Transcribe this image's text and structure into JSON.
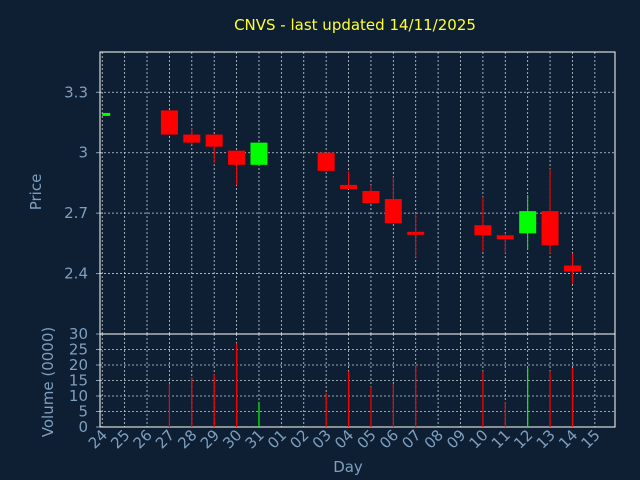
{
  "chart_data": [
    {
      "type": "candlestick",
      "title": "CNVS - last updated 14/11/2025",
      "ylabel": "Price",
      "ylim": [
        2.1,
        3.5
      ],
      "yticks": [
        2.4,
        2.7,
        3,
        3.3
      ],
      "ytick_labels": [
        "2.4",
        "2.7",
        "3",
        "3.3"
      ],
      "up_color": "#00ff00",
      "down_color": "#ff0000",
      "grid": true,
      "candles": [
        {
          "day": "24",
          "open": 3.19,
          "high": 3.19,
          "low": 3.19,
          "close": 3.19
        },
        {
          "day": "27",
          "open": 3.21,
          "high": 3.21,
          "low": 3.09,
          "close": 3.09
        },
        {
          "day": "28",
          "open": 3.09,
          "high": 3.12,
          "low": 3.04,
          "close": 3.05
        },
        {
          "day": "29",
          "open": 3.09,
          "high": 3.09,
          "low": 2.95,
          "close": 3.03
        },
        {
          "day": "30",
          "open": 3.01,
          "high": 3.01,
          "low": 2.84,
          "close": 2.94
        },
        {
          "day": "31",
          "open": 2.94,
          "high": 3.05,
          "low": 2.94,
          "close": 3.05
        },
        {
          "day": "03",
          "open": 3.0,
          "high": 3.0,
          "low": 2.91,
          "close": 2.91
        },
        {
          "day": "04",
          "open": 2.84,
          "high": 2.91,
          "low": 2.82,
          "close": 2.82
        },
        {
          "day": "05",
          "open": 2.81,
          "high": 2.84,
          "low": 2.75,
          "close": 2.75
        },
        {
          "day": "06",
          "open": 2.77,
          "high": 2.88,
          "low": 2.65,
          "close": 2.65
        },
        {
          "day": "07",
          "open": 2.6,
          "high": 2.7,
          "low": 2.48,
          "close": 2.59
        },
        {
          "day": "10",
          "open": 2.64,
          "high": 2.78,
          "low": 2.51,
          "close": 2.59
        },
        {
          "day": "11",
          "open": 2.59,
          "high": 2.6,
          "low": 2.5,
          "close": 2.57
        },
        {
          "day": "12",
          "open": 2.6,
          "high": 2.79,
          "low": 2.52,
          "close": 2.71
        },
        {
          "day": "13",
          "open": 2.71,
          "high": 2.92,
          "low": 2.5,
          "close": 2.54
        },
        {
          "day": "14",
          "open": 2.44,
          "high": 2.5,
          "low": 2.35,
          "close": 2.41
        }
      ]
    },
    {
      "type": "bar",
      "xlabel": "Day",
      "ylabel": "Volume (0000)",
      "ylim": [
        0,
        30
      ],
      "yticks": [
        0,
        5,
        10,
        15,
        20,
        25,
        30
      ],
      "ytick_labels": [
        "0",
        "5",
        "10",
        "15",
        "20",
        "25",
        "30"
      ],
      "categories": [
        "24",
        "25",
        "26",
        "27",
        "28",
        "29",
        "30",
        "31",
        "01",
        "02",
        "03",
        "04",
        "05",
        "06",
        "07",
        "08",
        "09",
        "10",
        "11",
        "12",
        "13",
        "14",
        "15"
      ],
      "values": [
        {
          "day": "27",
          "volume": 14,
          "color": "#ff0000"
        },
        {
          "day": "28",
          "volume": 16,
          "color": "#ff0000"
        },
        {
          "day": "29",
          "volume": 17,
          "color": "#ff0000"
        },
        {
          "day": "30",
          "volume": 27,
          "color": "#ff0000"
        },
        {
          "day": "31",
          "volume": 8,
          "color": "#00ff00"
        },
        {
          "day": "03",
          "volume": 11,
          "color": "#ff0000"
        },
        {
          "day": "04",
          "volume": 18,
          "color": "#ff0000"
        },
        {
          "day": "05",
          "volume": 13,
          "color": "#ff0000"
        },
        {
          "day": "06",
          "volume": 14,
          "color": "#ff0000"
        },
        {
          "day": "07",
          "volume": 20,
          "color": "#ff0000"
        },
        {
          "day": "10",
          "volume": 18,
          "color": "#ff0000"
        },
        {
          "day": "11",
          "volume": 8,
          "color": "#ff0000"
        },
        {
          "day": "12",
          "volume": 19,
          "color": "#00ff00"
        },
        {
          "day": "13",
          "volume": 18,
          "color": "#ff0000"
        },
        {
          "day": "14",
          "volume": 19,
          "color": "#ff0000"
        }
      ],
      "grid": true
    }
  ]
}
